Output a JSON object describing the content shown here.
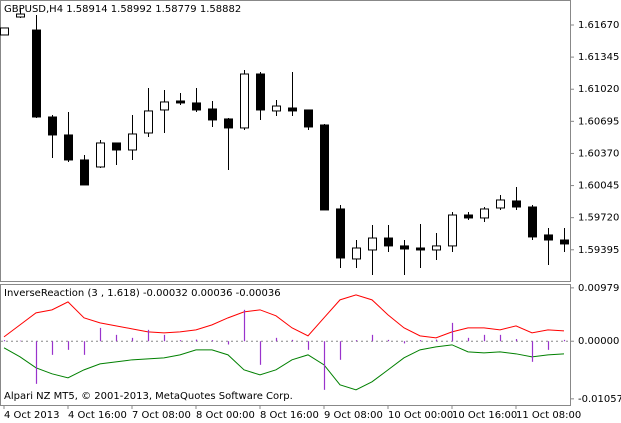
{
  "chart_data": [
    {
      "type": "candlestick",
      "title": "GBPUSD,H4  1.58914 1.58992 1.58779 1.58882",
      "open": [
        1.61569,
        1.61751,
        1.61619,
        1.60739,
        1.60557,
        1.60304,
        1.60233,
        1.60476,
        1.60405,
        1.60577,
        1.6081,
        1.60901,
        1.60881,
        1.6082,
        1.60719,
        1.60628,
        1.61174,
        1.608,
        1.6083,
        1.6081,
        1.60658,
        1.59808,
        1.59302,
        1.59393,
        1.59514,
        1.59434,
        1.59413,
        1.59393,
        1.59434,
        1.59747,
        1.59717,
        1.59818,
        1.59889,
        1.59828,
        1.59545,
        1.59494
      ],
      "high": [
        1.6164,
        1.61842,
        1.61771,
        1.60759,
        1.6079,
        1.60354,
        1.60506,
        1.60476,
        1.60759,
        1.61032,
        1.61012,
        1.60982,
        1.61032,
        1.60901,
        1.60729,
        1.61215,
        1.61194,
        1.60911,
        1.61194,
        1.6081,
        1.60668,
        1.59848,
        1.59494,
        1.59646,
        1.59646,
        1.59494,
        1.59656,
        1.59565,
        1.59777,
        1.59777,
        1.59828,
        1.5995,
        1.60031,
        1.59848,
        1.59616,
        1.59616
      ],
      "low": [
        1.61569,
        1.61741,
        1.60729,
        1.60324,
        1.60284,
        1.60051,
        1.60223,
        1.60253,
        1.60304,
        1.60537,
        1.60577,
        1.6086,
        1.6079,
        1.60638,
        1.60203,
        1.60607,
        1.60709,
        1.60749,
        1.60749,
        1.60607,
        1.59798,
        1.59211,
        1.59211,
        1.5914,
        1.59373,
        1.5914,
        1.59211,
        1.59292,
        1.59373,
        1.59696,
        1.59676,
        1.59798,
        1.59798,
        1.59494,
        1.59241,
        1.59373
      ],
      "close": [
        1.6164,
        1.61781,
        1.60739,
        1.60557,
        1.60304,
        1.60051,
        1.60476,
        1.60405,
        1.60567,
        1.608,
        1.60891,
        1.60881,
        1.6081,
        1.60709,
        1.60628,
        1.61174,
        1.6081,
        1.6085,
        1.608,
        1.60638,
        1.59798,
        1.59312,
        1.59413,
        1.59514,
        1.59434,
        1.59403,
        1.59393,
        1.59434,
        1.59747,
        1.59717,
        1.59808,
        1.59899,
        1.59828,
        1.59525,
        1.59494,
        1.59454
      ],
      "up_color": "#ffffff",
      "down_color": "#000000",
      "ylim": [
        1.59079,
        1.61923
      ],
      "yticks": [
        {
          "value": 1.6167,
          "label": "1.61670"
        },
        1.61345,
        {
          "value": 1.6102,
          "label": "1.61020"
        },
        1.60695,
        {
          "value": 1.6037,
          "label": "1.60370"
        },
        1.60045,
        {
          "value": 1.5972,
          "label": "1.59720"
        },
        1.59395
      ]
    },
    {
      "type": "line",
      "title": "InverseReaction (3 , 1.618) -0.00032 0.00036 -0.00036",
      "annotation": "Alpari NZ MT5, © 2001-2013, MetaQuotes Software Corp.",
      "categories": [
        "4 Oct 2013",
        null,
        null,
        null,
        "4 Oct 16:00",
        null,
        null,
        null,
        "7 Oct 08:00",
        null,
        null,
        null,
        "8 Oct 00:00",
        null,
        null,
        null,
        "8 Oct 16:00",
        null,
        null,
        null,
        "9 Oct 08:00",
        null,
        null,
        null,
        "10 Oct 00:00",
        null,
        null,
        null,
        "10 Oct 16:00",
        null,
        null,
        null,
        "11 Oct 08:00",
        null,
        null,
        null
      ],
      "series": [
        {
          "color": "#ff0000",
          "values": [
            0.0008,
            0.003,
            0.0052,
            0.00576,
            0.00722,
            0.00429,
            0.00337,
            0.00282,
            0.00227,
            0.00172,
            0.00154,
            0.00172,
            0.00209,
            0.003,
            0.00429,
            0.00539,
            0.00576,
            0.00466,
            0.00245,
            0.00099,
            0.00429,
            0.00759,
            0.00851,
            0.00759,
            0.00484,
            0.00245,
            0.00099,
            0.00062,
            0.00172,
            0.00245,
            0.00245,
            0.00209,
            0.00282,
            0.00154,
            0.00209,
            0.0019
          ]
        },
        {
          "color": "#008000",
          "values": [
            -0.00121,
            -0.00286,
            -0.00488,
            -0.00598,
            -0.00672,
            -0.00525,
            -0.00415,
            -0.00378,
            -0.00341,
            -0.00323,
            -0.00305,
            -0.0025,
            -0.00158,
            -0.00158,
            -0.0025,
            -0.00525,
            -0.00617,
            -0.00525,
            -0.00341,
            -0.0025,
            -0.00433,
            -0.008,
            -0.00892,
            -0.00745,
            -0.00525,
            -0.00305,
            -0.00158,
            -0.00103,
            -0.00066,
            -0.00195,
            -0.00213,
            -0.00195,
            -0.00231,
            -0.00286,
            -0.0025,
            -0.00231
          ]
        },
        {
          "color": "#9933cc",
          "style": "histogram",
          "values": [
            0.0002,
            0.0001,
            -0.00782,
            -0.0025,
            -0.00158,
            -0.0025,
            0.00245,
            0.00117,
            0.00062,
            0.00209,
            0.00117,
            0.0002,
            0.0003,
            0.0002,
            -0.0006,
            0.00576,
            -0.00433,
            0.00062,
            0.00025,
            -0.00158,
            -0.00892,
            -0.00341,
            0.0002,
            0.00117,
            0.00025,
            -0.0004,
            0.0002,
            0.0003,
            0.00337,
            0.00062,
            0.00117,
            0.00117,
            0.0004,
            -0.00378,
            -0.00158,
            0.00025
          ]
        }
      ],
      "ylim": [
        -0.0117,
        0.0105
      ],
      "yticks": [
        0.00979,
        {
          "value": 0,
          "label": "0.00000"
        },
        -0.01057
      ]
    }
  ]
}
